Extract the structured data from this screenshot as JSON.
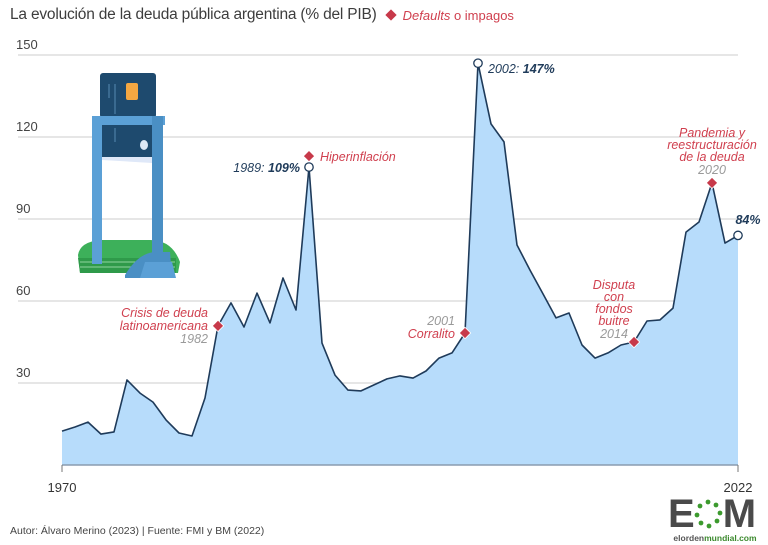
{
  "header": {
    "title": "La evolución de la deuda pública argentina (% del PIB)",
    "legend_italic": "Defaults",
    "legend_rest": " o impagos"
  },
  "footer": {
    "credit": "Autor: Álvaro Merino (2023) | Fuente: FMI y BM (2022)"
  },
  "logo": {
    "letters_left": "E",
    "letters_right": "M",
    "url_prefix": "elorden",
    "url_suffix": "mundial.com"
  },
  "colors": {
    "area_fill": "#b7dcfb",
    "line": "#1f3b5a",
    "grid": "#d6d6d6",
    "default_marker": "#c7394a",
    "annotation_red": "#d0404f",
    "annotation_year": "#9a9a9a",
    "annotation_value": "#1f3b5a"
  },
  "annotations": {
    "crisis_title_1": "Crisis de deuda",
    "crisis_title_2": "latinoamericana",
    "crisis_year": "1982",
    "hiper_title": "Hiperinflación",
    "peak1989_year": "1989: ",
    "peak1989_value": "109%",
    "peak2002_year": "2002: ",
    "peak2002_value": "147%",
    "corralito_year": "2001",
    "corralito_title": "Corralito",
    "buitre_1": "Disputa",
    "buitre_2": "con",
    "buitre_3": "fondos",
    "buitre_4": "buitre",
    "buitre_year": "2014",
    "pandemia_1": "Pandemia y",
    "pandemia_2": "reestructuración",
    "pandemia_3": "de la deuda",
    "pandemia_year": "2020",
    "last_value": "84%"
  },
  "chart_data": {
    "type": "area",
    "title": "La evolución de la deuda pública argentina (% del PIB)",
    "xlabel": "",
    "ylabel": "% del PIB",
    "x": [
      1970,
      1971,
      1972,
      1973,
      1974,
      1975,
      1976,
      1977,
      1978,
      1979,
      1980,
      1981,
      1982,
      1983,
      1984,
      1985,
      1986,
      1987,
      1988,
      1989,
      1990,
      1991,
      1992,
      1993,
      1994,
      1995,
      1996,
      1997,
      1998,
      1999,
      2000,
      2001,
      2002,
      2003,
      2004,
      2005,
      2006,
      2007,
      2008,
      2009,
      2010,
      2011,
      2012,
      2013,
      2014,
      2015,
      2016,
      2017,
      2018,
      2019,
      2020,
      2021,
      2022
    ],
    "values": [
      12.4,
      13.9,
      15.7,
      11.3,
      12.1,
      31.1,
      26.3,
      23.0,
      16.5,
      11.7,
      10.6,
      24.5,
      50.9,
      59.3,
      50.5,
      62.9,
      52.0,
      68.4,
      56.7,
      109,
      44.6,
      32.9,
      27.4,
      27.1,
      29.3,
      31.5,
      32.6,
      31.8,
      34.4,
      39.1,
      41.0,
      48.3,
      147,
      124.8,
      118.2,
      80.5,
      71.3,
      62.6,
      53.8,
      55.6,
      43.9,
      39.1,
      41.0,
      43.9,
      45.0,
      52.7,
      53.1,
      57.4,
      85.2,
      88.9,
      103.2,
      81.2,
      84
    ],
    "y_ticks": [
      30,
      60,
      90,
      120,
      150
    ],
    "x_ticks": [
      1970,
      2022
    ],
    "ylim": [
      0,
      150
    ],
    "grid": true,
    "defaults": [
      {
        "year": 1982,
        "label": "Crisis de deuda latinoamericana"
      },
      {
        "year": 1989,
        "label": "Hiperinflación"
      },
      {
        "year": 2001,
        "label": "Corralito"
      },
      {
        "year": 2014,
        "label": "Disputa con fondos buitre"
      },
      {
        "year": 2020,
        "label": "Pandemia y reestructuración de la deuda"
      }
    ],
    "highlighted": [
      {
        "year": 1989,
        "value": 109,
        "label": "1989: 109%"
      },
      {
        "year": 2002,
        "value": 147,
        "label": "2002: 147%"
      },
      {
        "year": 2022,
        "value": 84,
        "label": "84%"
      }
    ],
    "legend": [
      "Defaults o impagos"
    ]
  }
}
